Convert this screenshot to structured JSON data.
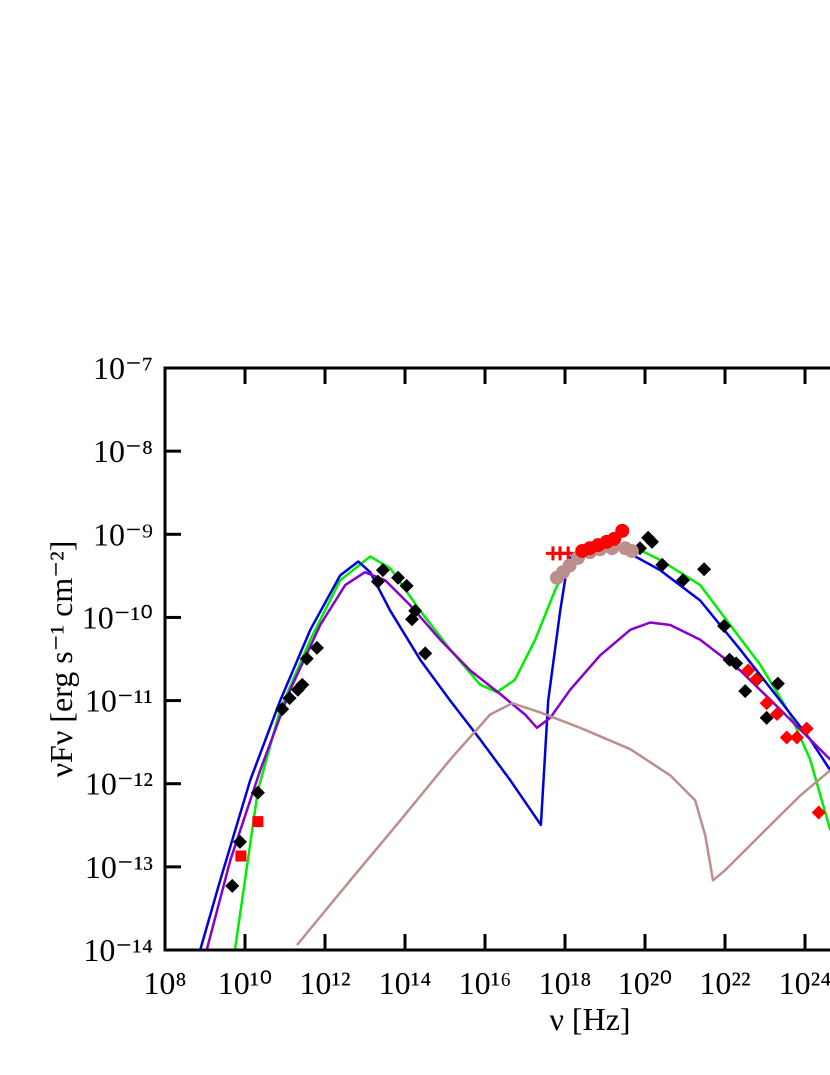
{
  "chart_data": {
    "type": "scatter",
    "x_label": "ν [Hz]",
    "y_label": "νFν [erg s⁻¹ cm⁻²]",
    "xscale": "log",
    "yscale": "log",
    "xlim": [
      100000000.0,
      1e+26
    ],
    "ylim": [
      1e-14,
      1e-07
    ],
    "xticks": [
      {
        "value": 100000000.0,
        "label": "10⁸"
      },
      {
        "value": 10000000000.0,
        "label": "10¹⁰"
      },
      {
        "value": 1000000000000.0,
        "label": "10¹²"
      },
      {
        "value": 100000000000000.0,
        "label": "10¹⁴"
      },
      {
        "value": 1e+16,
        "label": "10¹⁶"
      },
      {
        "value": 1e+18,
        "label": "10¹⁸"
      },
      {
        "value": 1e+20,
        "label": "10²⁰"
      },
      {
        "value": 1e+22,
        "label": "10²²"
      },
      {
        "value": 1e+24,
        "label": "10²⁴"
      }
    ],
    "yticks": [
      {
        "value": 1e-14,
        "label": "10⁻¹⁴"
      },
      {
        "value": 1e-13,
        "label": "10⁻¹³"
      },
      {
        "value": 1e-12,
        "label": "10⁻¹²"
      },
      {
        "value": 1e-11,
        "label": "10⁻¹¹"
      },
      {
        "value": 1e-10,
        "label": "10⁻¹⁰"
      },
      {
        "value": 1e-09,
        "label": "10⁻⁹"
      },
      {
        "value": 1e-08,
        "label": "10⁻⁸"
      },
      {
        "value": 1e-07,
        "label": "10⁻⁷"
      }
    ],
    "series": [
      {
        "color": "#00ee00",
        "mode": "line",
        "x": [
          5600000000.0,
          10000000000.0,
          21000000000.0,
          76000000000.0,
          430000000000.0,
          2400000000000.0,
          13500000000000.0,
          43000000000000.0,
          240000000000000.0,
          1350000000000000.0,
          7600000000000000.0,
          2e+16,
          5.6e+16,
          1.8e+17,
          5.6e+17,
          1.35e+18,
          7.6e+18,
          4.3e+19,
          2.4e+20,
          2.4e+21,
          1.35e+22,
          7.6e+22,
          4.3e+23,
          1.35e+24,
          4.3e+24
        ],
        "values": [
          1e-14,
          6.9e-14,
          8.3e-13,
          7.8e-12,
          5.4e-11,
          2.8e-10,
          5.4e-10,
          3.9e-10,
          1.2e-10,
          4.1e-11,
          1.55e-11,
          1.26e-11,
          1.78e-11,
          5.4e-11,
          2.1e-10,
          4.9e-10,
          6.8e-10,
          7.4e-10,
          4.9e-10,
          2.45e-10,
          8.1e-11,
          2.7e-11,
          6.8e-12,
          1.95e-12,
          2.75e-13
        ]
      },
      {
        "color": "#0000dd",
        "mode": "line",
        "x": [
          760000000.0,
          2400000000.0,
          13500000000.0,
          76000000000.0,
          430000000000.0,
          2400000000000.0,
          6800000000000.0,
          13500000000000.0,
          43000000000000.0,
          240000000000000.0,
          1350000000000000.0,
          7600000000000000.0,
          4.3e+16,
          2.5e+17,
          3.8e+17,
          7.6e+17,
          1.2e+18,
          2.4e+18,
          2.4e+19,
          2.4e+20,
          2.4e+21,
          2.4e+22,
          2.4e+23,
          1.35e+24,
          4.3e+24
        ],
        "values": [
          1e-14,
          6.9e-14,
          1.1e-12,
          1e-11,
          7.1e-11,
          3.2e-10,
          4.7e-10,
          3.5e-10,
          1.2e-10,
          3.1e-11,
          1e-11,
          3.4e-12,
          1.1e-12,
          3.2e-13,
          1e-11,
          1.2e-10,
          4.9e-10,
          6.8e-10,
          6.8e-10,
          3.7e-10,
          1.6e-10,
          4.1e-11,
          1e-11,
          3.4e-12,
          1.45e-12
        ]
      },
      {
        "color": "#8800cc",
        "mode": "line",
        "x": [
          1100000000.0,
          4300000000.0,
          24000000000.0,
          135000000000.0,
          760000000000.0,
          3200000000000.0,
          10000000000000.0,
          32000000000000.0,
          135000000000000.0,
          760000000000000.0,
          4300000000000000.0,
          2.4e+16,
          1e+17,
          2e+17,
          4.3e+17,
          1.35e+18,
          7.6e+18,
          4.3e+19,
          1.35e+20,
          4.3e+20,
          2.4e+21,
          2.4e+22,
          2.4e+23,
          1.35e+24,
          4.3e+24
        ],
        "values": [
          1e-14,
          1.2e-13,
          1.45e-12,
          1.35e-11,
          8.1e-11,
          2.45e-10,
          3.5e-10,
          2.8e-10,
          1.4e-10,
          5.4e-11,
          2.3e-11,
          1.2e-11,
          6.8e-12,
          4.7e-12,
          6.2e-12,
          1.35e-11,
          3.5e-11,
          7.1e-11,
          8.7e-11,
          8.1e-11,
          5.4e-11,
          2.3e-11,
          7.8e-12,
          3.4e-12,
          1.95e-12
        ]
      },
      {
        "color": "#bc8f8f",
        "mode": "line",
        "x": [
          200000000000.0,
          4300000000000.0,
          76000000000000.0,
          1350000000000000.0,
          1.35e+16,
          4.8e+16,
          2.4e+17,
          2.4e+18,
          4.3e+19,
          4.3e+20,
          1.8e+21,
          3.2e+21,
          5e+21,
          1e+22,
          7.6e+22,
          7.6e+23,
          4.3e+24
        ],
        "values": [
          1.15e-14,
          6.9e-14,
          3.6e-13,
          1.95e-12,
          6.8e-12,
          9.3e-12,
          7.2e-12,
          4.7e-12,
          2.6e-12,
          1.26e-12,
          6.3e-13,
          2.4e-13,
          6.9e-14,
          9.1e-14,
          2.4e-13,
          7.2e-13,
          1.45e-12
        ]
      },
      {
        "color": "#000000",
        "mode": "markers",
        "marker": "diamond",
        "x": [
          4800000000.0,
          7500000000.0,
          21000000000.0,
          85000000000.0,
          130000000000.0,
          210000000000.0,
          270000000000.0,
          350000000000.0,
          630000000000.0,
          21000000000000.0,
          28000000000000.0,
          67000000000000.0,
          110000000000000.0,
          150000000000000.0,
          180000000000000.0,
          320000000000000.0,
          7.5e+19,
          1.2e+20,
          1.5e+20,
          2.7e+20,
          8.9e+20,
          3e+21,
          9.5e+21,
          1.3e+22,
          1.9e+22,
          3.2e+22,
          6.3e+22,
          1.1e+23,
          2.1e+23
        ],
        "values": [
          5.9e-14,
          2e-13,
          7.8e-13,
          7.9e-12,
          1.07e-11,
          1.35e-11,
          1.55e-11,
          3.2e-11,
          4.3e-11,
          2.7e-10,
          3.7e-10,
          3e-10,
          2.4e-10,
          9.5e-11,
          1.2e-10,
          3.7e-11,
          6.8e-10,
          9.1e-10,
          8.1e-10,
          4.3e-10,
          2.8e-10,
          3.8e-10,
          7.9e-11,
          3.1e-11,
          2.8e-11,
          1.3e-11,
          1.8e-11,
          6.2e-12,
          1.6e-11
        ]
      },
      {
        "color": "#ff0000",
        "mode": "markers",
        "marker": "square",
        "x": [
          7900000000.0,
          21000000000.0
        ],
        "values": [
          1.35e-13,
          3.5e-13
        ]
      },
      {
        "color": "#ff0000",
        "mode": "markers",
        "marker": "diamond",
        "x": [
          3.8e+22,
          6e+22,
          1.1e+23,
          2e+23,
          3.5e+23,
          6.3e+23,
          1.1e+24,
          2.2e+24
        ],
        "values": [
          2.3e-11,
          1.8e-11,
          9.3e-12,
          6.9e-12,
          3.6e-12,
          3.6e-12,
          4.6e-12,
          4.5e-13
        ]
      },
      {
        "color": "#ff0000",
        "mode": "markers",
        "marker": "plus",
        "x": [
          5e+17,
          7.5e+17,
          1.2e+18
        ],
        "values": [
          5.9e-10,
          5.9e-10,
          5.9e-10
        ]
      },
      {
        "color": "#bc8f8f",
        "mode": "markers",
        "marker": "circle",
        "x": [
          6.3e+17,
          8.9e+17,
          1.3e+18,
          2.1e+18,
          4.2e+18,
          7.5e+18,
          1.5e+19,
          3.2e+19,
          4.7e+19
        ],
        "values": [
          3e-10,
          3.5e-10,
          4.2e-10,
          5.2e-10,
          6.1e-10,
          6.6e-10,
          6.8e-10,
          6.8e-10,
          6.3e-10
        ]
      },
      {
        "color": "#ff0000",
        "mode": "markers",
        "marker": "circle",
        "x": [
          2.7e+18,
          4.2e+18,
          6.7e+18,
          1.1e+19,
          1.7e+19,
          2.7e+19
        ],
        "values": [
          6.3e-10,
          6.8e-10,
          7.4e-10,
          8.1e-10,
          8.8e-10,
          1.1e-09
        ]
      }
    ]
  }
}
